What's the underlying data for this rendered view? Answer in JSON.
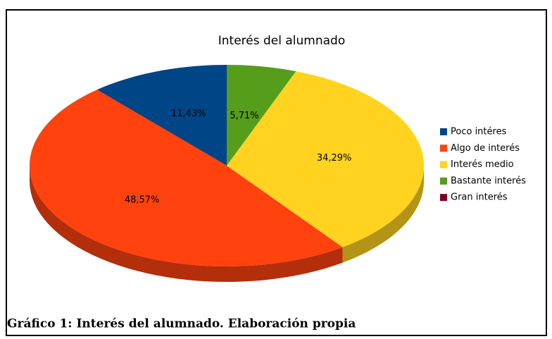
{
  "chart_data": {
    "type": "pie3d",
    "title": "Interés del alumnado",
    "categories": [
      "Poco intéres",
      "Algo de interés",
      "Interés medio",
      "Bastante interés",
      "Gran interés"
    ],
    "values": [
      11.43,
      48.57,
      34.29,
      5.71,
      0
    ],
    "value_labels": [
      "11,43%",
      "48,57%",
      "34,29%",
      "5,71%",
      null
    ],
    "colors": [
      "#004586",
      "#ff420e",
      "#ffd320",
      "#579d1c",
      "#7e0021"
    ],
    "legend": "right"
  },
  "caption": "Gráfico 1: Interés del alumnado. Elaboración propia"
}
